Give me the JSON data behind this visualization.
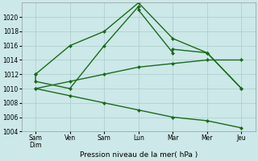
{
  "xlabel_label": "Pression niveau de la mer( hPa )",
  "background_color": "#cce8e8",
  "grid_color": "#aacccc",
  "line_color": "#1a6b1a",
  "x_labels": [
    "Sam\nDim",
    "Ven",
    "Sam",
    "Lun",
    "Mar",
    "Mer",
    "Jeu"
  ],
  "x_ticks": [
    0,
    1,
    2,
    3,
    4,
    5,
    6
  ],
  "ylim": [
    1004,
    1022
  ],
  "ytick_values": [
    1004,
    1006,
    1008,
    1010,
    1012,
    1014,
    1016,
    1018,
    1020
  ],
  "line1_x": [
    0,
    0,
    1,
    2,
    3,
    3,
    4,
    4,
    5,
    6
  ],
  "line1_y": [
    1012,
    1011,
    1010,
    1016,
    1021.5,
    1021,
    1015,
    1015.5,
    1015,
    1010
  ],
  "line2_x": [
    0,
    1,
    2,
    3,
    4,
    5,
    6
  ],
  "line2_y": [
    1012,
    1016,
    1018,
    1022,
    1017,
    1015,
    1010
  ],
  "line3_x": [
    0,
    1,
    2,
    3,
    4,
    5,
    6
  ],
  "line3_y": [
    1010,
    1011,
    1012,
    1013,
    1013.5,
    1014,
    1014
  ],
  "line4_x": [
    0,
    1,
    2,
    3,
    4,
    5,
    6
  ],
  "line4_y": [
    1010,
    1009,
    1008,
    1007,
    1006,
    1005.5,
    1004.5
  ],
  "figsize": [
    3.2,
    2.0
  ],
  "dpi": 100
}
